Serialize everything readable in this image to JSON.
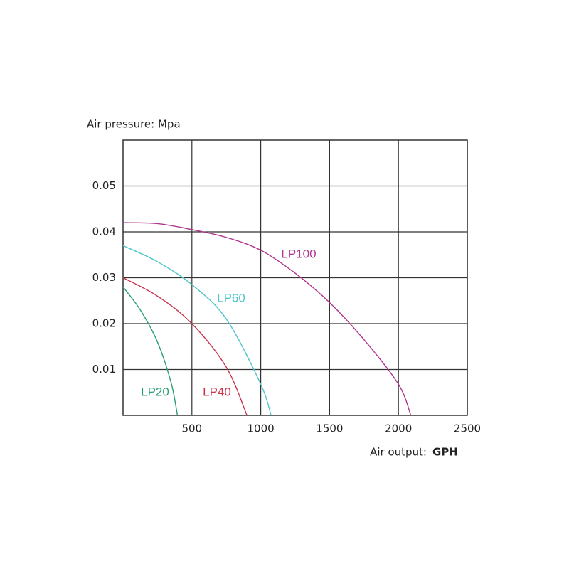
{
  "chart_data": {
    "type": "line",
    "y_label": "Air pressure: Mpa",
    "x_label": "Air output:",
    "x_unit": "GPH",
    "xlim": [
      0,
      2500
    ],
    "xticks": [
      500,
      1000,
      1500,
      2000,
      2500
    ],
    "ylim": [
      0,
      0.06
    ],
    "yticks": [
      0.01,
      0.02,
      0.03,
      0.04,
      0.05
    ],
    "grid": true,
    "series": [
      {
        "name": "LP100",
        "color": "#b0358f",
        "x": [
          0,
          250,
          500,
          750,
          1000,
          1250,
          1500,
          1750,
          2000,
          2090
        ],
        "values": [
          0.042,
          0.0418,
          0.0405,
          0.0388,
          0.036,
          0.031,
          0.0246,
          0.0165,
          0.0068,
          0
        ]
      },
      {
        "name": "LP60",
        "color": "#4cc5c9",
        "x": [
          0,
          250,
          500,
          750,
          1000,
          1075
        ],
        "values": [
          0.037,
          0.0335,
          0.0285,
          0.021,
          0.0068,
          0
        ]
      },
      {
        "name": "LP40",
        "color": "#c8334e",
        "x": [
          0,
          250,
          500,
          750,
          900
        ],
        "values": [
          0.03,
          0.026,
          0.02,
          0.0105,
          0
        ]
      },
      {
        "name": "LP20",
        "color": "#2aa070",
        "x": [
          0,
          125,
          250,
          350,
          395
        ],
        "values": [
          0.028,
          0.023,
          0.016,
          0.007,
          0
        ]
      }
    ]
  }
}
